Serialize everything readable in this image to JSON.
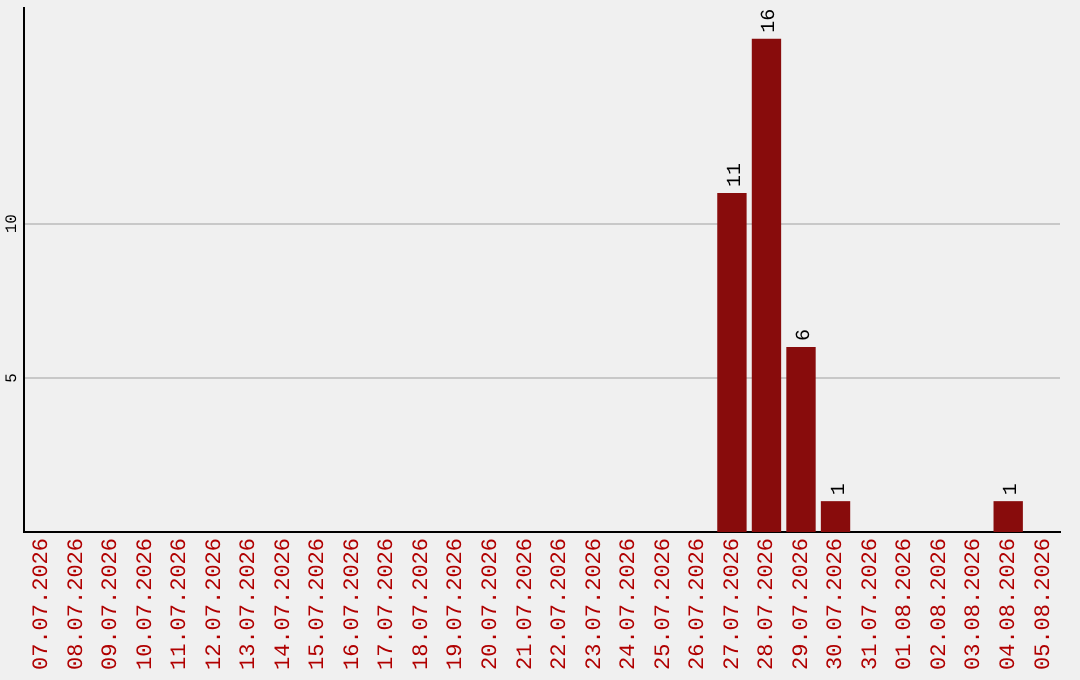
{
  "chart_data": {
    "type": "bar",
    "categories": [
      "07.07.2026",
      "08.07.2026",
      "09.07.2026",
      "10.07.2026",
      "11.07.2026",
      "12.07.2026",
      "13.07.2026",
      "14.07.2026",
      "15.07.2026",
      "16.07.2026",
      "17.07.2026",
      "18.07.2026",
      "19.07.2026",
      "20.07.2026",
      "21.07.2026",
      "22.07.2026",
      "23.07.2026",
      "24.07.2026",
      "25.07.2026",
      "26.07.2026",
      "27.07.2026",
      "28.07.2026",
      "29.07.2026",
      "30.07.2026",
      "31.07.2026",
      "01.08.2026",
      "02.08.2026",
      "03.08.2026",
      "04.08.2026",
      "05.08.2026"
    ],
    "values": [
      0,
      0,
      0,
      0,
      0,
      0,
      0,
      0,
      0,
      0,
      0,
      0,
      0,
      0,
      0,
      0,
      0,
      0,
      0,
      0,
      11,
      16,
      6,
      1,
      0,
      0,
      0,
      0,
      1,
      0
    ],
    "value_labels": [
      null,
      null,
      null,
      null,
      null,
      null,
      null,
      null,
      null,
      null,
      null,
      null,
      null,
      null,
      null,
      null,
      null,
      null,
      null,
      null,
      "11",
      "16",
      "6",
      "1",
      null,
      null,
      null,
      null,
      "1",
      null
    ],
    "color": "#880c0c",
    "ylim": [
      0,
      17
    ],
    "yticks": [
      5,
      10
    ],
    "grid": "y",
    "legend": false
  }
}
